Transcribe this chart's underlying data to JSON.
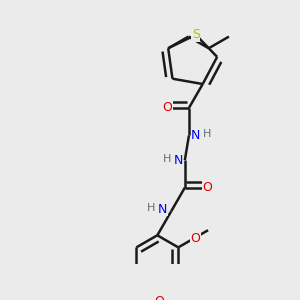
{
  "bg_color": "#ebebeb",
  "atom_colors": {
    "C": "#1a1a1a",
    "H": "#607070",
    "N": "#0000EE",
    "O": "#DD0000",
    "S": "#BBBB00"
  },
  "bond_color": "#1a1a1a",
  "bond_width": 1.8,
  "figsize": [
    3.0,
    3.0
  ],
  "dpi": 100
}
